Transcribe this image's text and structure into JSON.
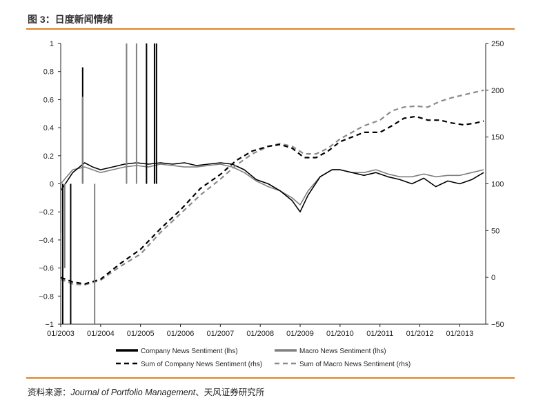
{
  "title": "图 3：日度新闻情绪",
  "source": {
    "prefix": "资料来源：",
    "journal": "Journal of Portfolio Management",
    "suffix": "、天风证券研究所"
  },
  "chart_data": {
    "type": "line",
    "x_tick_labels": [
      "01/2003",
      "01/2004",
      "01/2005",
      "01/2006",
      "01/2007",
      "01/2008",
      "01/2009",
      "01/2010",
      "01/2011",
      "01/2012",
      "01/2013"
    ],
    "x_range": [
      2003.0,
      2013.65
    ],
    "y_left_range": [
      -1,
      1
    ],
    "y_left_ticks": [
      1,
      0.8,
      0.6,
      0.4,
      0.2,
      0,
      -0.2,
      -0.4,
      -0.6,
      -0.8,
      -1
    ],
    "y_left_tick_labels": [
      "1",
      "0.8",
      "0.6",
      "0.4",
      "0.2",
      "0",
      "−0.2",
      "−0.4",
      "−0.6",
      "−0.8",
      "−1"
    ],
    "y_right_range": [
      -50,
      250
    ],
    "y_right_ticks": [
      250,
      200,
      150,
      100,
      50,
      0,
      -50
    ],
    "y_right_tick_labels": [
      "250",
      "200",
      "150",
      "100",
      "50",
      "0",
      "−50"
    ],
    "grid": false,
    "legend": "bottom",
    "series": [
      {
        "name": "Company News Sentiment (lhs)",
        "axis": "left",
        "style": "solid",
        "color": "#000000",
        "x": [
          2003.0,
          2003.3,
          2003.6,
          2003.8,
          2004.0,
          2004.3,
          2004.6,
          2004.9,
          2005.2,
          2005.5,
          2005.8,
          2006.1,
          2006.4,
          2006.7,
          2007.0,
          2007.3,
          2007.6,
          2007.9,
          2008.2,
          2008.5,
          2008.8,
          2009.0,
          2009.2,
          2009.5,
          2009.8,
          2010.0,
          2010.3,
          2010.6,
          2010.9,
          2011.2,
          2011.5,
          2011.8,
          2012.1,
          2012.4,
          2012.7,
          2013.0,
          2013.3,
          2013.6
        ],
        "values": [
          -0.05,
          0.08,
          0.15,
          0.12,
          0.1,
          0.12,
          0.14,
          0.15,
          0.14,
          0.15,
          0.14,
          0.15,
          0.13,
          0.14,
          0.15,
          0.14,
          0.1,
          0.03,
          0.0,
          -0.05,
          -0.12,
          -0.2,
          -0.08,
          0.05,
          0.1,
          0.1,
          0.08,
          0.06,
          0.08,
          0.05,
          0.03,
          0.0,
          0.04,
          -0.02,
          0.02,
          0.0,
          0.03,
          0.08
        ]
      },
      {
        "name": "Macro News Sentiment (lhs)",
        "axis": "left",
        "style": "solid",
        "color": "#7f7f7f",
        "x": [
          2003.0,
          2003.3,
          2003.6,
          2003.8,
          2004.0,
          2004.3,
          2004.6,
          2004.9,
          2005.2,
          2005.5,
          2005.8,
          2006.1,
          2006.4,
          2006.7,
          2007.0,
          2007.3,
          2007.6,
          2007.9,
          2008.2,
          2008.5,
          2008.8,
          2009.0,
          2009.2,
          2009.5,
          2009.8,
          2010.0,
          2010.3,
          2010.6,
          2010.9,
          2011.2,
          2011.5,
          2011.8,
          2012.1,
          2012.4,
          2012.7,
          2013.0,
          2013.3,
          2013.6
        ],
        "values": [
          0.0,
          0.1,
          0.12,
          0.1,
          0.08,
          0.1,
          0.12,
          0.13,
          0.12,
          0.14,
          0.13,
          0.12,
          0.12,
          0.13,
          0.14,
          0.12,
          0.08,
          0.02,
          -0.02,
          -0.05,
          -0.1,
          -0.15,
          -0.05,
          0.05,
          0.1,
          0.1,
          0.08,
          0.08,
          0.1,
          0.07,
          0.05,
          0.05,
          0.07,
          0.05,
          0.06,
          0.06,
          0.08,
          0.1
        ]
      },
      {
        "name": "Sum of Company News Sentiment (rhs)",
        "axis": "right",
        "style": "dashed",
        "color": "#000000",
        "x": [
          2003.0,
          2003.3,
          2003.6,
          2004.0,
          2004.5,
          2005.0,
          2005.5,
          2006.0,
          2006.5,
          2007.0,
          2007.4,
          2007.8,
          2008.2,
          2008.5,
          2008.8,
          2009.1,
          2009.4,
          2009.7,
          2010.0,
          2010.3,
          2010.6,
          2011.0,
          2011.3,
          2011.6,
          2011.9,
          2012.2,
          2012.5,
          2012.8,
          2013.1,
          2013.4,
          2013.6
        ],
        "values": [
          0,
          -5,
          -7,
          -2,
          15,
          30,
          52,
          72,
          95,
          110,
          125,
          135,
          140,
          142,
          138,
          128,
          128,
          135,
          145,
          150,
          155,
          155,
          162,
          170,
          172,
          168,
          168,
          165,
          163,
          165,
          167
        ]
      },
      {
        "name": "Sum of Macro News Sentiment (rhs)",
        "axis": "right",
        "style": "dashed",
        "color": "#8a8a8a",
        "x": [
          2003.0,
          2003.3,
          2003.6,
          2004.0,
          2004.5,
          2005.0,
          2005.5,
          2006.0,
          2006.5,
          2007.0,
          2007.4,
          2007.8,
          2008.2,
          2008.5,
          2008.8,
          2009.1,
          2009.4,
          2009.7,
          2010.0,
          2010.3,
          2010.6,
          2011.0,
          2011.3,
          2011.6,
          2011.9,
          2012.2,
          2012.5,
          2012.8,
          2013.1,
          2013.4,
          2013.6
        ],
        "values": [
          -2,
          -7,
          -8,
          -3,
          12,
          25,
          48,
          68,
          88,
          105,
          120,
          132,
          140,
          143,
          140,
          132,
          132,
          138,
          148,
          155,
          162,
          168,
          178,
          182,
          183,
          182,
          188,
          192,
          195,
          198,
          200
        ]
      }
    ],
    "spikes": [
      {
        "series": "Company News Sentiment (lhs)",
        "x": 2003.05,
        "value": -1.0
      },
      {
        "series": "Company News Sentiment (lhs)",
        "x": 2003.25,
        "value": -1.0
      },
      {
        "series": "Company News Sentiment (lhs)",
        "x": 2003.55,
        "value": 0.83
      },
      {
        "series": "Company News Sentiment (lhs)",
        "x": 2005.15,
        "value": 1.0
      },
      {
        "series": "Company News Sentiment (lhs)",
        "x": 2005.35,
        "value": 1.0
      },
      {
        "series": "Company News Sentiment (lhs)",
        "x": 2005.4,
        "value": 1.0
      },
      {
        "series": "Macro News Sentiment (lhs)",
        "x": 2003.1,
        "value": -0.6
      },
      {
        "series": "Macro News Sentiment (lhs)",
        "x": 2003.55,
        "value": 0.62
      },
      {
        "series": "Macro News Sentiment (lhs)",
        "x": 2003.85,
        "value": -1.0
      },
      {
        "series": "Macro News Sentiment (lhs)",
        "x": 2004.65,
        "value": 1.0
      },
      {
        "series": "Macro News Sentiment (lhs)",
        "x": 2004.9,
        "value": 1.0
      },
      {
        "series": "Macro News Sentiment (lhs)",
        "x": 2003.0,
        "value": -0.35
      }
    ]
  }
}
